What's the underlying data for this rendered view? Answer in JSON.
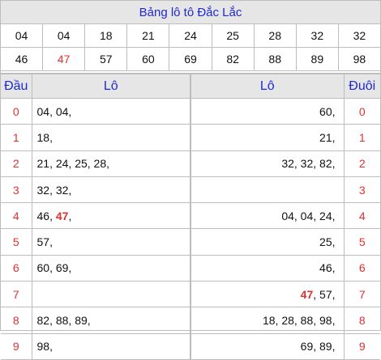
{
  "title": "Bảng lô tô Đắc Lắc",
  "numbers_row1": [
    "04",
    "04",
    "18",
    "21",
    "24",
    "25",
    "28",
    "32",
    "32"
  ],
  "numbers_row2": [
    "46",
    "47",
    "57",
    "60",
    "69",
    "82",
    "88",
    "89",
    "98"
  ],
  "highlight_number": "47",
  "header": {
    "dau": "Đầu",
    "lo_left": "Lô",
    "lo_right": "Lô",
    "duoi": "Đuôi"
  },
  "rows": [
    {
      "dau": "0",
      "left": "04, 04,",
      "right": "60,",
      "duoi": "0"
    },
    {
      "dau": "1",
      "left": "18,",
      "right": "21,",
      "duoi": "1"
    },
    {
      "dau": "2",
      "left": "21, 24, 25, 28,",
      "right": "32, 32, 82,",
      "duoi": "2"
    },
    {
      "dau": "3",
      "left": "32, 32,",
      "right": "",
      "duoi": "3"
    },
    {
      "dau": "4",
      "left_pre": "46, ",
      "left_hl": "47",
      "left_post": ",",
      "right": "04, 04, 24,",
      "duoi": "4"
    },
    {
      "dau": "5",
      "left": "57,",
      "right": "25,",
      "duoi": "5"
    },
    {
      "dau": "6",
      "left": "60, 69,",
      "right": "46,",
      "duoi": "6"
    },
    {
      "dau": "7",
      "left": "",
      "right_hl": "47",
      "right_post": ", 57,",
      "duoi": "7"
    },
    {
      "dau": "8",
      "left": "82, 88, 89,",
      "right": "18, 28, 88, 98,",
      "duoi": "8"
    },
    {
      "dau": "9",
      "left": "98,",
      "right": "69, 89,",
      "duoi": "9"
    }
  ],
  "colors": {
    "title_blue": "#1f2ad4",
    "red": "#e0312f",
    "header_bg": "#e6e6e6"
  }
}
